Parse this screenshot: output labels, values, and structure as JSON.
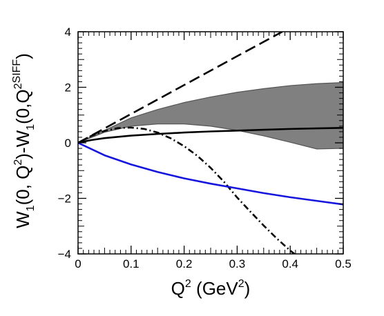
{
  "chart_data": {
    "type": "line",
    "title": "",
    "xlabel": {
      "parts": [
        "Q",
        "2",
        " (GeV",
        "2",
        ")"
      ]
    },
    "ylabel": {
      "parts": [
        "W",
        "1",
        "(0, Q",
        "2",
        ")-W",
        "1",
        "(0,Q",
        "2",
        "SIFF",
        ")"
      ]
    },
    "xlim": [
      0,
      0.5
    ],
    "ylim": [
      -4,
      4
    ],
    "x_ticks": [
      "0",
      "0.1",
      "0.2",
      "0.3",
      "0.4",
      "0.5"
    ],
    "y_ticks": [
      "−4",
      "−2",
      "0",
      "2",
      "4"
    ],
    "grid": false,
    "legend": "none",
    "band": {
      "color": "#808080",
      "edge_color": "#555555",
      "x": [
        0,
        0.05,
        0.1,
        0.15,
        0.2,
        0.25,
        0.3,
        0.35,
        0.4,
        0.45,
        0.5
      ],
      "upper": [
        0,
        0.45,
        0.9,
        1.2,
        1.45,
        1.65,
        1.82,
        1.95,
        2.06,
        2.13,
        2.17
      ],
      "lower": [
        0,
        0.38,
        0.6,
        0.68,
        0.68,
        0.6,
        0.45,
        0.25,
        0.02,
        -0.22,
        -0.2
      ]
    },
    "series": [
      {
        "style": "dashed",
        "color": "#000000",
        "x": [
          0,
          0.1,
          0.2,
          0.3,
          0.385
        ],
        "y": [
          0,
          1.04,
          2.08,
          3.12,
          4.0
        ]
      },
      {
        "style": "dash-dot",
        "color": "#000000",
        "x": [
          0,
          0.025,
          0.05,
          0.075,
          0.1,
          0.125,
          0.15,
          0.175,
          0.2,
          0.225,
          0.25,
          0.275,
          0.3,
          0.325,
          0.35,
          0.375,
          0.4,
          0.408
        ],
        "y": [
          0,
          0.25,
          0.43,
          0.53,
          0.55,
          0.5,
          0.37,
          0.16,
          -0.12,
          -0.47,
          -0.9,
          -1.4,
          -1.97,
          -2.48,
          -2.98,
          -3.45,
          -3.88,
          -4.0
        ]
      },
      {
        "style": "solid",
        "color": "#000000",
        "x": [
          0,
          0.025,
          0.05,
          0.1,
          0.15,
          0.2,
          0.25,
          0.3,
          0.35,
          0.4,
          0.45,
          0.5
        ],
        "y": [
          0,
          0.1,
          0.17,
          0.26,
          0.32,
          0.37,
          0.41,
          0.44,
          0.47,
          0.5,
          0.52,
          0.54
        ]
      },
      {
        "style": "solid",
        "color": "#1515dd",
        "x": [
          0,
          0.05,
          0.1,
          0.15,
          0.2,
          0.25,
          0.3,
          0.35,
          0.4,
          0.45,
          0.5
        ],
        "y": [
          0,
          -0.45,
          -0.78,
          -1.05,
          -1.28,
          -1.47,
          -1.64,
          -1.81,
          -1.96,
          -2.09,
          -2.22
        ]
      }
    ]
  }
}
